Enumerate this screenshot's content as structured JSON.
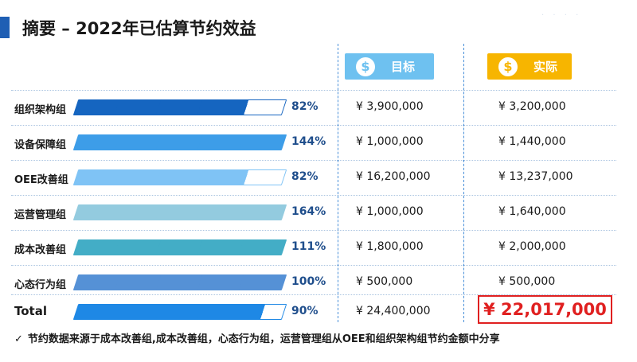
{
  "title": "摘要 – 2022年已估算节约效益",
  "header": {
    "target_label": "目标",
    "actual_label": "实际",
    "coin_symbol": "$"
  },
  "rows": [
    {
      "name": "组织架构组",
      "pct": "82%",
      "target": "¥ 3,900,000",
      "actual": "¥ 3,200,000",
      "progress": 0.82,
      "color": "#1565c0"
    },
    {
      "name": "设备保障组",
      "pct": "144%",
      "target": "¥ 1,000,000",
      "actual": "¥ 1,440,000",
      "progress": 1.0,
      "color": "#3d9de8"
    },
    {
      "name": "OEE改善组",
      "pct": "82%",
      "target": "¥ 16,200,000",
      "actual": "¥ 13,237,000",
      "progress": 0.82,
      "color": "#7fc3f5"
    },
    {
      "name": "运营管理组",
      "pct": "164%",
      "target": "¥ 1,000,000",
      "actual": "¥ 1,640,000",
      "progress": 1.0,
      "color": "#93cbdf"
    },
    {
      "name": "成本改善组",
      "pct": "111%",
      "target": "¥ 1,800,000",
      "actual": "¥ 2,000,000",
      "progress": 1.0,
      "color": "#43adc6"
    },
    {
      "name": "心态行为组",
      "pct": "100%",
      "target": "¥ 500,000",
      "actual": "¥ 500,000",
      "progress": 1.0,
      "color": "#5591d6"
    }
  ],
  "total": {
    "name": "Total",
    "pct": "90%",
    "target": "¥ 24,400,000",
    "actual": "¥ 22,017,000",
    "progress": 0.9,
    "color": "#1e88e5"
  },
  "footnote": {
    "check": "✓",
    "text": "节约数据来源于成本改善组,成本改善组，心态行为组，运营管理组从OEE和组织架构组节约金额中分享"
  },
  "colors": {
    "accent": "#1f5fb4",
    "target_badge": "#6ec1f0",
    "actual_badge": "#f7b500",
    "total_highlight": "#e02020"
  }
}
